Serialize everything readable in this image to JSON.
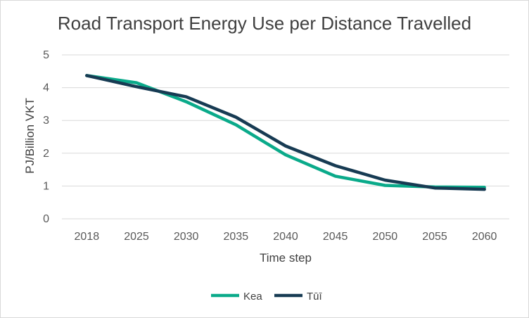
{
  "chart_data": {
    "type": "line",
    "title": "Road Transport Energy Use per Distance Travelled",
    "xlabel": "Time step",
    "ylabel": "PJ/Billion VKT",
    "categories": [
      "2018",
      "2025",
      "2030",
      "2035",
      "2040",
      "2045",
      "2050",
      "2055",
      "2060"
    ],
    "ylim": [
      0,
      5
    ],
    "yticks": [
      "0",
      "1",
      "2",
      "3",
      "4",
      "5"
    ],
    "grid": true,
    "legend_position": "bottom",
    "series": [
      {
        "name": "Kea",
        "color": "#0aaa8a",
        "values": [
          4.37,
          4.15,
          3.57,
          2.87,
          1.95,
          1.3,
          1.02,
          0.97,
          0.96
        ]
      },
      {
        "name": "Tūī",
        "color": "#173b53",
        "values": [
          4.37,
          4.03,
          3.72,
          3.1,
          2.22,
          1.62,
          1.18,
          0.94,
          0.9
        ]
      }
    ]
  }
}
